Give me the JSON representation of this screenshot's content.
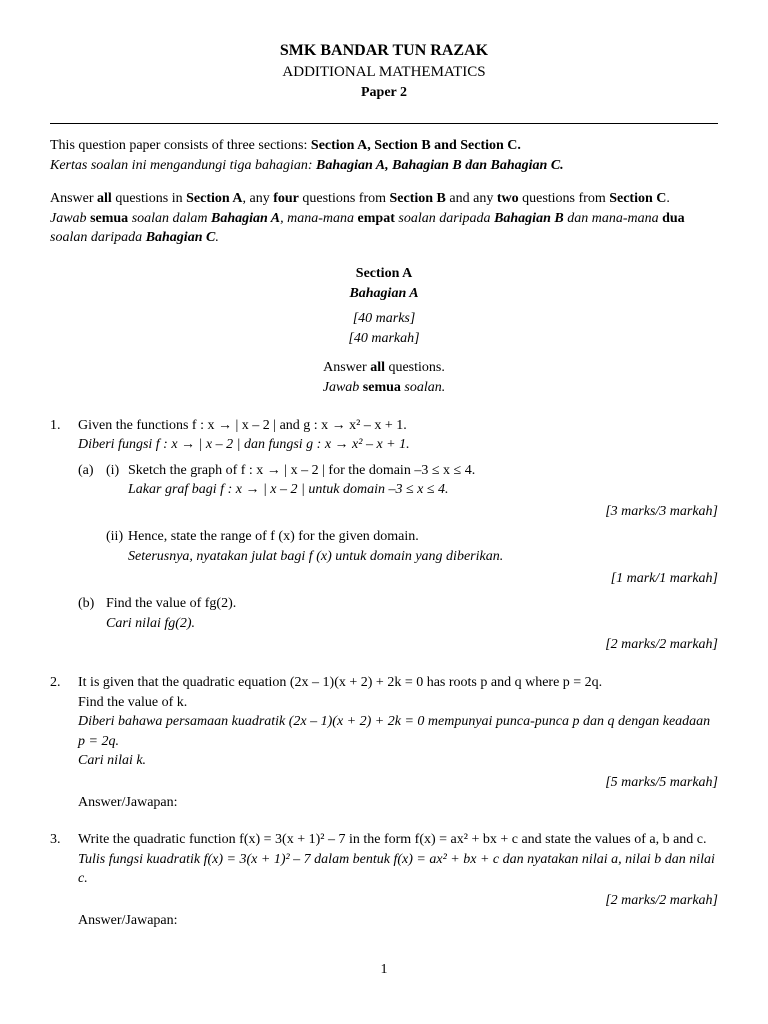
{
  "header": {
    "school": "SMK BANDAR TUN RAZAK",
    "subject": "ADDITIONAL MATHEMATICS",
    "paper": "Paper 2"
  },
  "intro": {
    "line1_en": "This question paper consists of three sections: ",
    "sections_en": "Section A, Section B and Section C.",
    "line1_ms": "Kertas soalan ini mengandungi tiga bahagian: ",
    "sections_ms": "Bahagian A, Bahagian B dan Bahagian C."
  },
  "instr": {
    "en_a": "Answer ",
    "en_all": "all",
    "en_b": " questions in ",
    "en_secA": "Section A",
    "en_c": ", any ",
    "en_four": "four",
    "en_d": " questions from ",
    "en_secB": "Section B",
    "en_e": " and any ",
    "en_two": "two",
    "en_f": " questions from ",
    "en_secC": "Section C",
    "en_g": ".",
    "ms_a": "Jawab ",
    "ms_semua": "semua",
    "ms_b": " soalan dalam ",
    "ms_bahA": "Bahagian A",
    "ms_c": ", mana-mana ",
    "ms_empat": "empat",
    "ms_d": " soalan daripada ",
    "ms_bahB": "Bahagian B",
    "ms_e": " dan mana-mana ",
    "ms_dua": "dua",
    "ms_f": " soalan daripada ",
    "ms_bahC": "Bahagian C",
    "ms_g": "."
  },
  "section": {
    "title_en": "Section A",
    "title_ms": "Bahagian A",
    "marks_en": "[40 marks]",
    "marks_ms": "[40 markah]",
    "ans_en_a": "Answer ",
    "ans_en_all": "all",
    "ans_en_b": " questions.",
    "ans_ms_a": "Jawab ",
    "ans_ms_semua": "semua",
    "ans_ms_b": " soalan."
  },
  "q1": {
    "num": "1.",
    "en": "Given the functions f : x → | x – 2 | and g : x → x² – x + 1.",
    "ms": "Diberi fungsi f : x → | x – 2 | dan fungsi g : x → x² – x + 1.",
    "a_label": "(a)",
    "a_i_label": "(i)",
    "a_i_en": "Sketch the graph of f : x → | x – 2 | for the domain –3 ≤ x ≤ 4.",
    "a_i_ms": "Lakar graf bagi f : x → | x – 2 | untuk domain –3 ≤ x ≤ 4.",
    "a_i_marks": "[3 marks/3 markah]",
    "a_ii_label": "(ii)",
    "a_ii_en": "Hence, state the range of f (x) for the given domain.",
    "a_ii_ms": "Seterusnya, nyatakan julat bagi f (x) untuk domain yang diberikan.",
    "a_ii_marks": "[1 mark/1 markah]",
    "b_label": "(b)",
    "b_en": "Find the value of fg(2).",
    "b_ms": "Cari nilai fg(2).",
    "b_marks": "[2 marks/2 markah]"
  },
  "q2": {
    "num": "2.",
    "en1": "It is given that the quadratic equation (2x – 1)(x + 2) + 2k = 0 has roots p and q where p = 2q.",
    "en2": "Find the value of k.",
    "ms1": "Diberi bahawa persamaan kuadratik (2x – 1)(x + 2) + 2k = 0 mempunyai punca-punca p dan q dengan keadaan p = 2q.",
    "ms2": "Cari nilai k.",
    "marks": "[5 marks/5 markah]",
    "answer": "Answer/Jawapan:"
  },
  "q3": {
    "num": "3.",
    "en": "Write the quadratic function f(x) = 3(x + 1)² – 7 in the form f(x) = ax² + bx + c and state the values of a, b and c.",
    "ms": "Tulis fungsi kuadratik f(x) = 3(x + 1)² – 7 dalam bentuk f(x) = ax² + bx + c dan nyatakan nilai a, nilai b dan nilai c.",
    "marks": "[2 marks/2 markah]",
    "answer": "Answer/Jawapan:"
  },
  "page": "1"
}
